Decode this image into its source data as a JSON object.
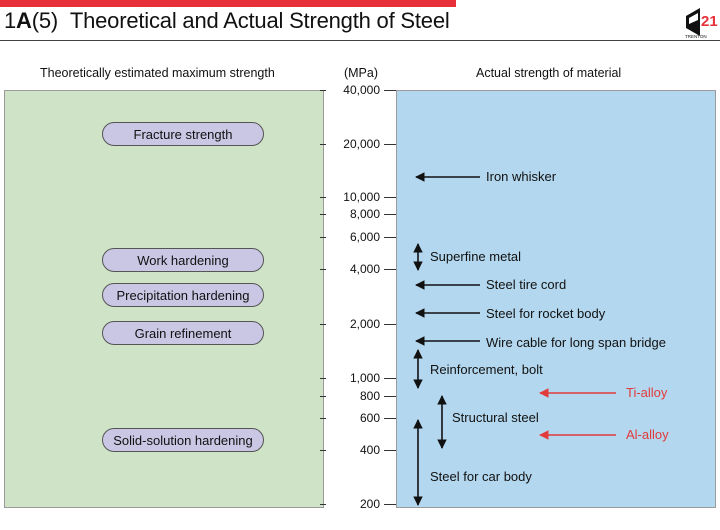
{
  "header": {
    "num": "1",
    "letter": "A",
    "section": "(5)",
    "title_text": "Theoretical and Actual Strength of Steel"
  },
  "left_header": "Theoretically estimated maximum strength",
  "right_header": "Actual strength of material",
  "unit": "(MPa)",
  "colors": {
    "accent_bar": "#e8303a",
    "left_panel": "#cfe3c7",
    "right_panel": "#b3d7ee",
    "pill_fill": "#c9c7e4",
    "red_text": "#e23b3b"
  },
  "scale": {
    "type": "log",
    "min": 200,
    "max": 40000,
    "ticks": [
      {
        "value": 40000,
        "label": "40,000"
      },
      {
        "value": 20000,
        "label": "20,000"
      },
      {
        "value": 10000,
        "label": "10,000"
      },
      {
        "value": 8000,
        "label": "8,000"
      },
      {
        "value": 6000,
        "label": "6,000"
      },
      {
        "value": 4000,
        "label": "4,000"
      },
      {
        "value": 2000,
        "label": "2,000"
      },
      {
        "value": 1000,
        "label": "1,000"
      },
      {
        "value": 800,
        "label": "800"
      },
      {
        "value": 600,
        "label": "600"
      },
      {
        "value": 400,
        "label": "400"
      },
      {
        "value": 200,
        "label": "200"
      }
    ]
  },
  "mechanisms": [
    {
      "label": "Fracture strength"
    },
    {
      "label": "Work hardening"
    },
    {
      "label": "Precipitation hardening"
    },
    {
      "label": "Grain refinement"
    },
    {
      "label": "Solid-solution hardening"
    }
  ],
  "materials": [
    {
      "label": "Iron whisker"
    },
    {
      "label": "Superfine metal"
    },
    {
      "label": "Steel tire cord"
    },
    {
      "label": "Steel for rocket body"
    },
    {
      "label": "Wire cable for long span bridge"
    },
    {
      "label": "Reinforcement, bolt"
    },
    {
      "label": "Structural steel"
    },
    {
      "label": "Steel for car body"
    },
    {
      "label": "Ti-alloy"
    },
    {
      "label": "Al-alloy"
    }
  ],
  "logo": {
    "text": "TRENTON",
    "number": "21"
  }
}
